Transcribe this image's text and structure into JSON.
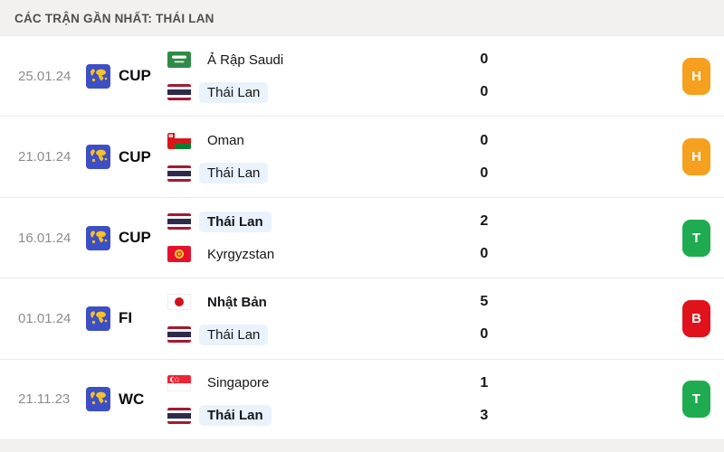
{
  "header": {
    "title": "CÁC TRẬN GẦN NHẤT: THÁI LAN"
  },
  "colors": {
    "win": "#1FAB50",
    "draw": "#F5A01E",
    "loss": "#E0121C",
    "thailand_highlight": "#EAF2FC",
    "competition_icon_blue": "#3D4FC4",
    "header_bg": "#F2F1EF"
  },
  "icons": {
    "competition": "world-map-icon",
    "result_letters_meaning": {
      "H": "draw",
      "T": "win",
      "B": "loss"
    }
  },
  "matches": [
    {
      "date": "25.01.24",
      "competition": "CUP",
      "home": {
        "team": "Ả Rập Saudi",
        "flag": "saudi-arabia",
        "score": "0",
        "winner": false,
        "highlight": false
      },
      "away": {
        "team": "Thái Lan",
        "flag": "thailand",
        "score": "0",
        "winner": false,
        "highlight": true
      },
      "result": {
        "letter": "H",
        "type": "draw"
      }
    },
    {
      "date": "21.01.24",
      "competition": "CUP",
      "home": {
        "team": "Oman",
        "flag": "oman",
        "score": "0",
        "winner": false,
        "highlight": false
      },
      "away": {
        "team": "Thái Lan",
        "flag": "thailand",
        "score": "0",
        "winner": false,
        "highlight": true
      },
      "result": {
        "letter": "H",
        "type": "draw"
      }
    },
    {
      "date": "16.01.24",
      "competition": "CUP",
      "home": {
        "team": "Thái Lan",
        "flag": "thailand",
        "score": "2",
        "winner": true,
        "highlight": true
      },
      "away": {
        "team": "Kyrgyzstan",
        "flag": "kyrgyzstan",
        "score": "0",
        "winner": false,
        "highlight": false
      },
      "result": {
        "letter": "T",
        "type": "win"
      }
    },
    {
      "date": "01.01.24",
      "competition": "FI",
      "home": {
        "team": "Nhật Bản",
        "flag": "japan",
        "score": "5",
        "winner": true,
        "highlight": false
      },
      "away": {
        "team": "Thái Lan",
        "flag": "thailand",
        "score": "0",
        "winner": false,
        "highlight": true
      },
      "result": {
        "letter": "B",
        "type": "loss"
      }
    },
    {
      "date": "21.11.23",
      "competition": "WC",
      "home": {
        "team": "Singapore",
        "flag": "singapore",
        "score": "1",
        "winner": false,
        "highlight": false
      },
      "away": {
        "team": "Thái Lan",
        "flag": "thailand",
        "score": "3",
        "winner": true,
        "highlight": true
      },
      "result": {
        "letter": "T",
        "type": "win"
      }
    }
  ]
}
